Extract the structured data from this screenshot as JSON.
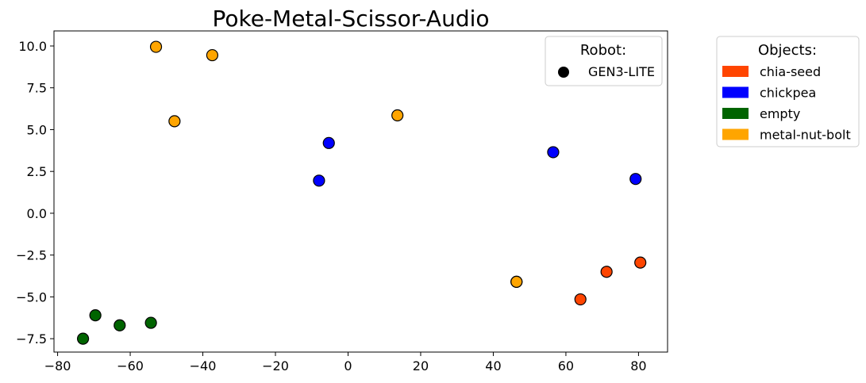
{
  "chart_data": {
    "type": "scatter",
    "title": "Poke-Metal-Scissor-Audio",
    "xlabel": "",
    "ylabel": "",
    "xlim": [
      -81,
      88
    ],
    "ylim": [
      -8.3,
      10.9
    ],
    "xticks": [
      -80,
      -60,
      -40,
      -20,
      0,
      20,
      40,
      60,
      80
    ],
    "xtick_labels": [
      "−80",
      "−60",
      "−40",
      "−20",
      "0",
      "20",
      "40",
      "60",
      "80"
    ],
    "yticks": [
      -7.5,
      -5.0,
      -2.5,
      0.0,
      2.5,
      5.0,
      7.5,
      10.0
    ],
    "ytick_labels": [
      "−7.5",
      "−5.0",
      "−2.5",
      "0.0",
      "2.5",
      "5.0",
      "7.5",
      "10.0"
    ],
    "grid": false,
    "series": [
      {
        "name": "chia-seed",
        "color": "#ff4500",
        "points": [
          [
            64.0,
            -5.15
          ],
          [
            71.2,
            -3.5
          ],
          [
            80.5,
            -2.95
          ],
          [
            46.4,
            -4.1
          ]
        ]
      },
      {
        "name": "chickpea",
        "color": "#0000ff",
        "points": [
          [
            -8.0,
            1.95
          ],
          [
            -5.3,
            4.2
          ],
          [
            56.5,
            3.65
          ],
          [
            79.2,
            2.05
          ]
        ]
      },
      {
        "name": "empty",
        "color": "#006400",
        "points": [
          [
            -73.0,
            -7.5
          ],
          [
            -69.6,
            -6.1
          ],
          [
            -62.9,
            -6.7
          ],
          [
            -54.3,
            -6.55
          ]
        ]
      },
      {
        "name": "metal-nut-bolt",
        "color": "#ffa500",
        "points": [
          [
            -52.9,
            9.95
          ],
          [
            -37.4,
            9.45
          ],
          [
            -47.8,
            5.5
          ],
          [
            13.6,
            5.85
          ],
          [
            46.4,
            -4.1
          ]
        ]
      }
    ],
    "legends": [
      {
        "title": "Robot:",
        "placement": "top-right inside axes",
        "entries": [
          {
            "label": "GEN3-LITE",
            "marker": "circle",
            "color": "#000000"
          }
        ]
      },
      {
        "title": "Objects:",
        "placement": "outside right of axes",
        "entries": [
          {
            "label": "chia-seed",
            "color": "#ff4500"
          },
          {
            "label": "chickpea",
            "color": "#0000ff"
          },
          {
            "label": "empty",
            "color": "#006400"
          },
          {
            "label": "metal-nut-bolt",
            "color": "#ffa500"
          }
        ]
      }
    ]
  }
}
